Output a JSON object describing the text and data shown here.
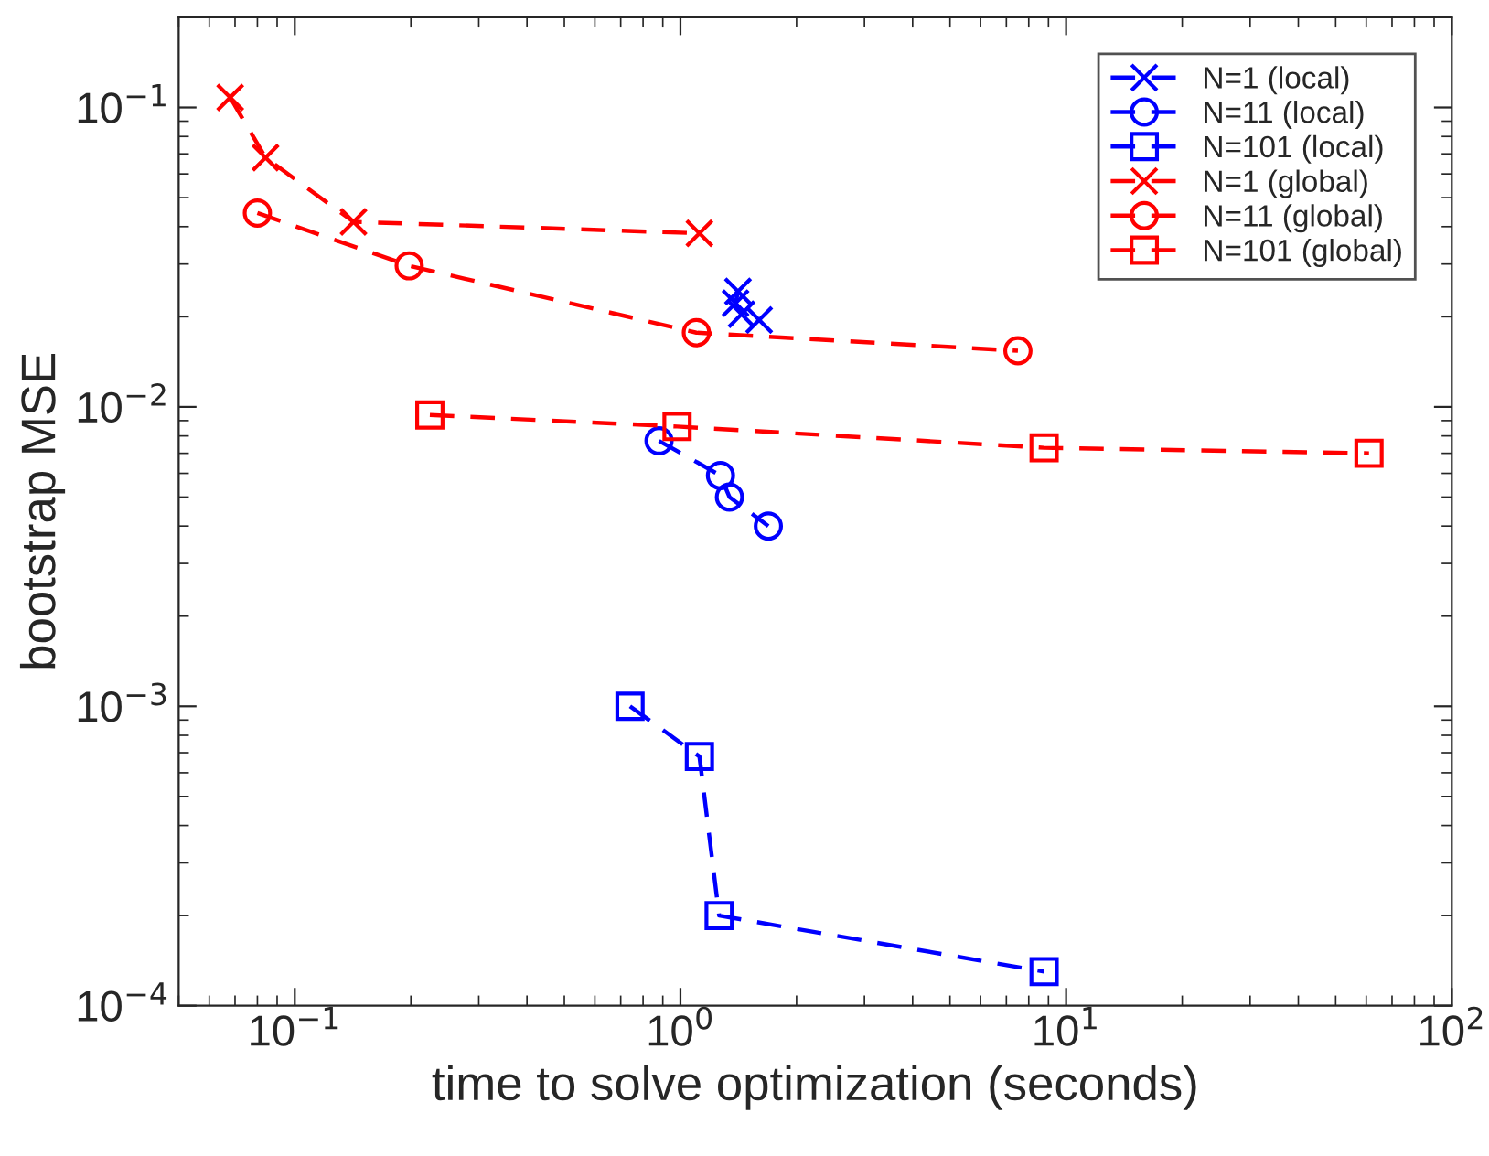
{
  "chart_data": {
    "type": "line",
    "xlabel": "time to solve optimization (seconds)",
    "ylabel": "bootstrap MSE",
    "log": "xy",
    "grid": false,
    "legend": "top right",
    "line_style": "dashed",
    "xlim": [
      0.05,
      100
    ],
    "ylim": [
      0.0001,
      0.2
    ],
    "xticks": [
      {
        "value": 0.1,
        "label": "10$^{−1}$"
      },
      {
        "value": 1,
        "label": "10$^{0}$"
      },
      {
        "value": 10,
        "label": "10$^{1}$"
      },
      {
        "value": 100,
        "label": "10$^{2}$"
      }
    ],
    "yticks": [
      {
        "value": 0.0001,
        "label": "10$^{−4}$"
      },
      {
        "value": 0.001,
        "label": "10$^{−3}$"
      },
      {
        "value": 0.01,
        "label": "10$^{−2}$"
      },
      {
        "value": 0.1,
        "label": "10$^{−1}$"
      }
    ],
    "series": [
      {
        "name": "N=1 (local)",
        "color": "#0000ff",
        "marker": "cross",
        "x": [
          1.41,
          1.39,
          1.44,
          1.6
        ],
        "values": [
          0.0243,
          0.0222,
          0.0204,
          0.0195
        ]
      },
      {
        "name": "N=11 (local)",
        "color": "#0000ff",
        "marker": "circle",
        "x": [
          0.88,
          1.27,
          1.34,
          1.69
        ],
        "values": [
          0.0077,
          0.0059,
          0.005,
          0.004
        ]
      },
      {
        "name": "N=101 (local)",
        "color": "#0000ff",
        "marker": "square",
        "x": [
          0.74,
          1.12,
          1.26,
          8.77
        ],
        "values": [
          0.001,
          0.00068,
          0.0002,
          0.00013
        ]
      },
      {
        "name": "N=1 (global)",
        "color": "#ff0000",
        "marker": "cross",
        "x": [
          0.068,
          0.084,
          0.142,
          1.12
        ],
        "values": [
          0.108,
          0.068,
          0.0415,
          0.038
        ]
      },
      {
        "name": "N=11 (global)",
        "color": "#ff0000",
        "marker": "circle",
        "x": [
          0.08,
          0.198,
          1.1,
          7.5
        ],
        "values": [
          0.0444,
          0.0296,
          0.0177,
          0.0154
        ]
      },
      {
        "name": "N=101 (global)",
        "color": "#ff0000",
        "marker": "square",
        "x": [
          0.224,
          0.98,
          8.77,
          61
        ],
        "values": [
          0.0094,
          0.0086,
          0.0073,
          0.007
        ]
      }
    ]
  }
}
